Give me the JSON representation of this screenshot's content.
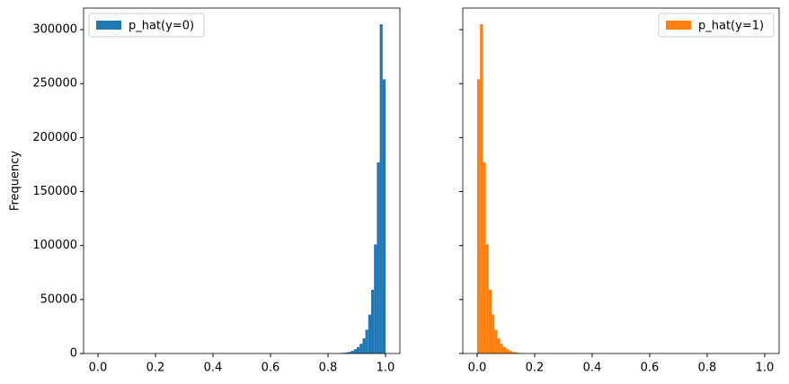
{
  "chart_data": [
    {
      "type": "histogram",
      "ylabel": "Frequency",
      "legend": "upper left",
      "bins": [
        0.8,
        0.81,
        0.82,
        0.83,
        0.84,
        0.85,
        0.86,
        0.87,
        0.88,
        0.89,
        0.9,
        0.91,
        0.92,
        0.93,
        0.94,
        0.95,
        0.96,
        0.97,
        0.98,
        0.99,
        1.0
      ],
      "series": [
        {
          "name": "p_hat(y=0)",
          "color": "#1f77b4",
          "values": [
            20,
            40,
            80,
            150,
            300,
            600,
            1000,
            1500,
            2500,
            4000,
            6000,
            9000,
            14000,
            22000,
            36000,
            59000,
            101000,
            177000,
            305000,
            254000
          ]
        }
      ],
      "xlim": [
        -0.05,
        1.05
      ],
      "xticks": [
        {
          "value": 0,
          "label": "0.0"
        },
        0.2,
        0.4,
        0.6,
        0.8,
        {
          "value": 1,
          "label": "1.0"
        }
      ],
      "ylim": [
        0,
        320000
      ],
      "yticks": [
        0,
        50000,
        100000,
        150000,
        200000,
        250000,
        300000
      ]
    },
    {
      "type": "histogram",
      "legend": "upper right",
      "bins": [
        0.0,
        0.01,
        0.02,
        0.03,
        0.04,
        0.05,
        0.06,
        0.07,
        0.08,
        0.09,
        0.1,
        0.11,
        0.12,
        0.13,
        0.14,
        0.15,
        0.16,
        0.17,
        0.18,
        0.19,
        0.2
      ],
      "series": [
        {
          "name": "p_hat(y=1)",
          "color": "#ff7f0e",
          "values": [
            254000,
            305000,
            177000,
            101000,
            59000,
            36000,
            22000,
            14000,
            9000,
            6000,
            4000,
            2500,
            1500,
            1000,
            600,
            300,
            150,
            80,
            40,
            20
          ]
        }
      ],
      "xlim": [
        -0.05,
        1.05
      ],
      "xticks": [
        {
          "value": 0,
          "label": "0.0"
        },
        0.2,
        0.4,
        0.6,
        0.8,
        {
          "value": 1,
          "label": "1.0"
        }
      ],
      "ylim": [
        0,
        320000
      ]
    }
  ]
}
